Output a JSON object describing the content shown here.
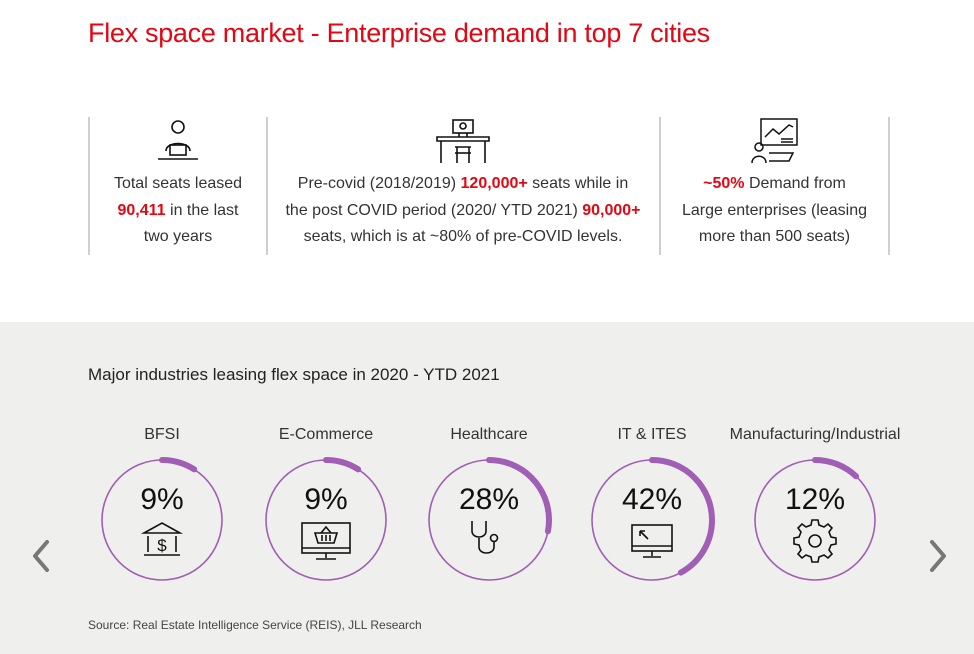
{
  "title": "Flex space market - Enterprise demand in top 7 cities",
  "stats": [
    {
      "icon": "person-laptop-icon",
      "line1": "Total seats leased",
      "highlight": "90,411",
      "line2_rest": " in the last",
      "line3": "two years"
    },
    {
      "icon": "desk-workstation-icon",
      "part1": "Pre-covid (2018/2019) ",
      "highlight1": "120,000+",
      "part2": " seats while in",
      "part3": "the post COVID period (2020/ YTD 2021) ",
      "highlight2": "90,000+",
      "part4": "seats, which is at ~80% of pre-COVID levels."
    },
    {
      "icon": "presentation-analytics-icon",
      "highlight": "~50%",
      "line1_rest": " Demand from",
      "line2": "Large enterprises (leasing",
      "line3": "more than 500 seats)"
    }
  ],
  "subtitle": "Major industries leasing flex space in 2020 - YTD 2021",
  "industries": [
    {
      "label": "BFSI",
      "percent_text": "9%",
      "share": 9,
      "icon": "bank-icon"
    },
    {
      "label": "E-Commerce",
      "percent_text": "9%",
      "share": 9,
      "icon": "shopping-basket-monitor-icon"
    },
    {
      "label": "Healthcare",
      "percent_text": "28%",
      "share": 28,
      "icon": "stethoscope-icon"
    },
    {
      "label": "IT & ITES",
      "percent_text": "42%",
      "share": 42,
      "icon": "computer-cursor-icon"
    },
    {
      "label": "Manufacturing/Industrial",
      "percent_text": "12%",
      "share": 12,
      "icon": "gear-icon"
    }
  ],
  "colors": {
    "accent_red": "#e30613",
    "ring_purple": "#a05eb5",
    "band_gray": "#efefed"
  },
  "source": "Source: Real Estate Intelligence Service (REIS), JLL Research"
}
